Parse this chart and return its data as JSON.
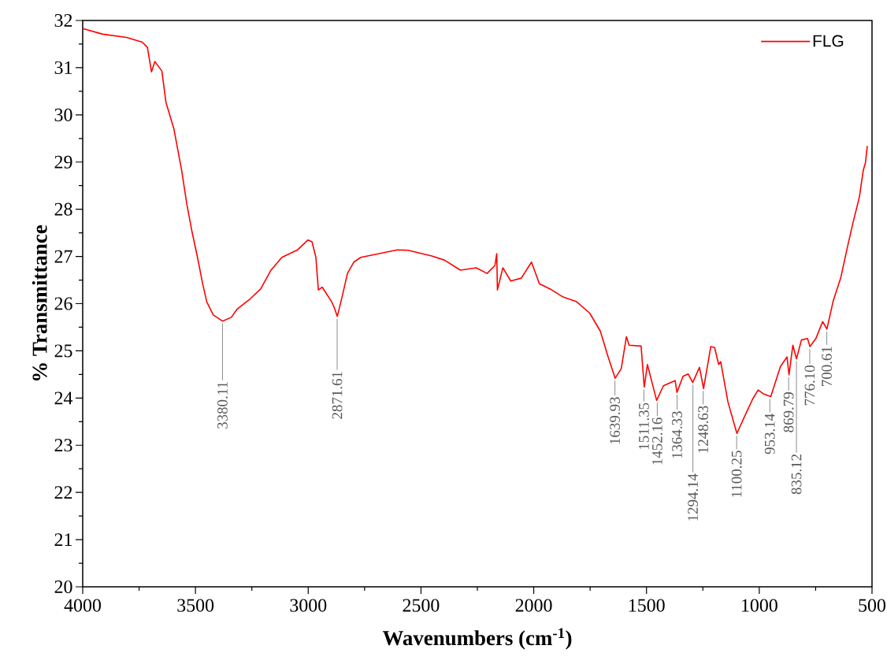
{
  "chart_data": {
    "type": "line",
    "xlabel": "Wavenumbers (cm$^{-1}$)",
    "ylabel": "% Transmittance",
    "xlim": [
      4000,
      500
    ],
    "ylim": [
      20,
      32
    ],
    "xticks": [
      4000,
      3500,
      3000,
      2500,
      2000,
      1500,
      1000,
      500
    ],
    "yticks": [
      20,
      21,
      22,
      23,
      24,
      25,
      26,
      27,
      28,
      29,
      30,
      31,
      32
    ],
    "legend": "top right",
    "marker": "none",
    "line_style": "solid",
    "x": [
      4000,
      3911,
      3806,
      3736,
      3713,
      3695,
      3680,
      3649,
      3631,
      3596,
      3561,
      3538,
      3516,
      3491,
      3468,
      3450,
      3421,
      3380,
      3341,
      3316,
      3258,
      3211,
      3165,
      3117,
      3047,
      3001,
      2983,
      2966,
      2955,
      2938,
      2896,
      2885,
      2871,
      2850,
      2826,
      2798,
      2767,
      2686,
      2605,
      2557,
      2452,
      2395,
      2325,
      2255,
      2207,
      2172,
      2164,
      2161,
      2137,
      2102,
      2055,
      2010,
      1975,
      1927,
      1870,
      1810,
      1752,
      1705,
      1670,
      1639,
      1612,
      1589,
      1577,
      1524,
      1510,
      1496,
      1455,
      1425,
      1373,
      1365,
      1338,
      1315,
      1295,
      1265,
      1247,
      1215,
      1198,
      1180,
      1171,
      1139,
      1113,
      1099,
      1069,
      1029,
      1005,
      982,
      949,
      906,
      877,
      868,
      851,
      835,
      813,
      786,
      775,
      749,
      719,
      700,
      673,
      638,
      609,
      585,
      556,
      539,
      529,
      521
    ],
    "series": [
      {
        "name": "FLG",
        "color": "#ff0000",
        "values": [
          31.83,
          31.71,
          31.64,
          31.54,
          31.43,
          30.91,
          31.13,
          30.93,
          30.27,
          29.71,
          28.82,
          28.1,
          27.54,
          26.98,
          26.42,
          26.04,
          25.76,
          25.63,
          25.71,
          25.88,
          26.1,
          26.31,
          26.71,
          26.98,
          27.14,
          27.35,
          27.31,
          26.98,
          26.29,
          26.35,
          26.04,
          25.92,
          25.73,
          26.14,
          26.64,
          26.88,
          26.98,
          27.06,
          27.14,
          27.13,
          27.01,
          26.92,
          26.71,
          26.76,
          26.64,
          26.81,
          27.06,
          26.29,
          26.76,
          26.48,
          26.54,
          26.88,
          26.42,
          26.31,
          26.14,
          26.04,
          25.8,
          25.42,
          24.87,
          24.42,
          24.62,
          25.3,
          25.12,
          25.1,
          24.23,
          24.71,
          23.95,
          24.26,
          24.37,
          24.12,
          24.46,
          24.51,
          24.33,
          24.65,
          24.2,
          25.09,
          25.07,
          24.71,
          24.77,
          23.92,
          23.48,
          23.25,
          23.57,
          23.98,
          24.17,
          24.09,
          24.03,
          24.67,
          24.87,
          24.49,
          25.12,
          24.83,
          25.23,
          25.26,
          25.09,
          25.26,
          25.62,
          25.46,
          26.04,
          26.56,
          27.2,
          27.7,
          28.26,
          28.82,
          28.99,
          29.34
        ]
      }
    ],
    "annotations": [
      {
        "text": "3380.11",
        "x": 3380.11,
        "y": 25.63
      },
      {
        "text": "2871.61",
        "x": 2871.61,
        "y": 25.73
      },
      {
        "text": "1639.93",
        "x": 1639.93,
        "y": 24.42
      },
      {
        "text": "1511.35",
        "x": 1511.35,
        "y": 24.23
      },
      {
        "text": "1452.16",
        "x": 1452.16,
        "y": 23.95
      },
      {
        "text": "1364.33",
        "x": 1364.33,
        "y": 24.12
      },
      {
        "text": "1294.14",
        "x": 1294.14,
        "y": 24.33
      },
      {
        "text": "1248.63",
        "x": 1248.63,
        "y": 24.2
      },
      {
        "text": "1100.25",
        "x": 1100.25,
        "y": 23.25
      },
      {
        "text": "953.14",
        "x": 953.14,
        "y": 24.03
      },
      {
        "text": "869.79",
        "x": 869.79,
        "y": 24.49
      },
      {
        "text": "835.12",
        "x": 835.12,
        "y": 24.83
      },
      {
        "text": "776.10",
        "x": 776.1,
        "y": 25.09
      },
      {
        "text": "700.61",
        "x": 700.61,
        "y": 25.46
      }
    ]
  }
}
